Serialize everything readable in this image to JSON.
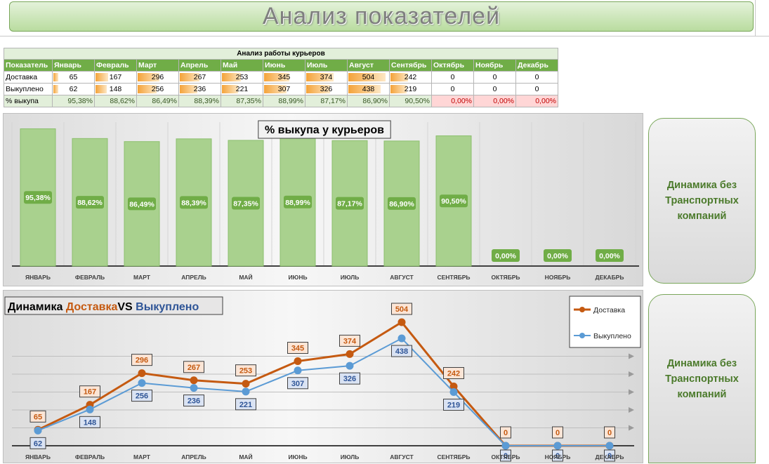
{
  "title": "Анализ показателей",
  "table": {
    "caption": "Анализ работы курьеров",
    "header": [
      "Показатель",
      "Январь",
      "Февраль",
      "Март",
      "Апрель",
      "Май",
      "Июнь",
      "Июль",
      "Август",
      "Сентябрь",
      "Октябрь",
      "Ноябрь",
      "Декабрь"
    ],
    "rows": [
      {
        "label": "Доставка",
        "values": [
          "65",
          "167",
          "296",
          "267",
          "253",
          "345",
          "374",
          "504",
          "242",
          "0",
          "0",
          "0"
        ]
      },
      {
        "label": "Выкуплено",
        "values": [
          "62",
          "148",
          "256",
          "236",
          "221",
          "307",
          "326",
          "438",
          "219",
          "0",
          "0",
          "0"
        ]
      },
      {
        "label": "% выкупа",
        "values": [
          "95,38%",
          "88,62%",
          "86,49%",
          "88,39%",
          "87,35%",
          "88,99%",
          "87,17%",
          "86,90%",
          "90,50%",
          "0,00%",
          "0,00%",
          "0,00%"
        ]
      }
    ]
  },
  "side_buttons": {
    "top": {
      "line1": "Динамика без",
      "line2": "Транспортных",
      "line3": "компаний"
    },
    "bottom": {
      "line1": "Динамика без",
      "line2": "Транспортных",
      "line3": "компаний"
    }
  },
  "chart_data": [
    {
      "type": "bar",
      "title": "% выкупа у курьеров",
      "categories": [
        "ЯНВАРЬ",
        "ФЕВРАЛЬ",
        "МАРТ",
        "АПРЕЛЬ",
        "МАЙ",
        "ИЮНЬ",
        "ИЮЛЬ",
        "АВГУСТ",
        "СЕНТЯБРЬ",
        "ОКТЯБРЬ",
        "НОЯБРЬ",
        "ДЕКАБРЬ"
      ],
      "values": [
        95.38,
        88.62,
        86.49,
        88.39,
        87.35,
        88.99,
        87.17,
        86.9,
        90.5,
        0,
        0,
        0
      ],
      "labels": [
        "95,38%",
        "88,62%",
        "86,49%",
        "88,39%",
        "87,35%",
        "88,99%",
        "87,17%",
        "86,90%",
        "90,50%",
        "0,00%",
        "0,00%",
        "0,00%"
      ],
      "ylim": [
        0,
        100
      ],
      "color": "#a9d18e",
      "label_color": "#70ad47"
    },
    {
      "type": "line",
      "title": {
        "part1": "Динамика ",
        "part2": "Доставка",
        "part3": "VS ",
        "part4": "Выкуплено"
      },
      "categories": [
        "ЯНВАРЬ",
        "ФЕВРАЛЬ",
        "МАРТ",
        "АПРЕЛЬ",
        "МАЙ",
        "ИЮНЬ",
        "ИЮЛЬ",
        "АВГУСТ",
        "СЕНТЯБРЬ",
        "ОКТЯБРЬ",
        "НОЯБРЬ",
        "ДЕКАБРЬ"
      ],
      "series": [
        {
          "name": "Доставка",
          "values": [
            65,
            167,
            296,
            267,
            253,
            345,
            374,
            504,
            242,
            0,
            0,
            0
          ],
          "color": "#c55a11"
        },
        {
          "name": "Выкуплено",
          "values": [
            62,
            148,
            256,
            236,
            221,
            307,
            326,
            438,
            219,
            0,
            0,
            0
          ],
          "color": "#5b9bd5"
        }
      ],
      "ylim": [
        0,
        520
      ],
      "legend": "top-right",
      "title_colors": {
        "dark": "#000000",
        "orange": "#c55a11",
        "blue": "#2f5597"
      }
    }
  ]
}
